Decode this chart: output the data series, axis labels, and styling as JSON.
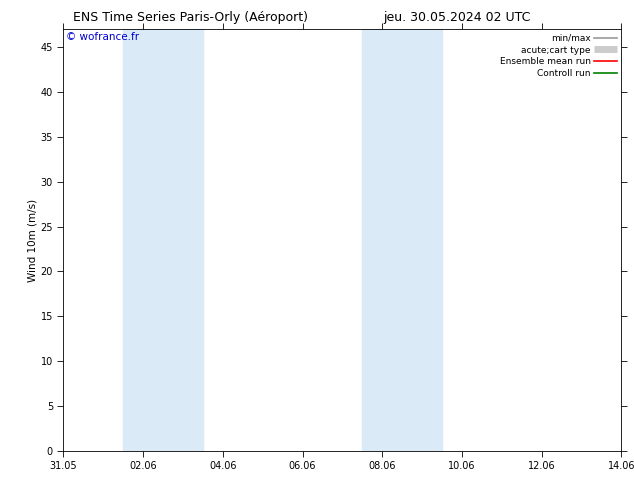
{
  "title_left": "ENS Time Series Paris-Orly (Aéroport)",
  "title_right": "jeu. 30.05.2024 02 UTC",
  "ylabel": "Wind 10m (m/s)",
  "watermark": "© wofrance.fr",
  "watermark_color": "#0000cc",
  "ylim": [
    0,
    47
  ],
  "yticks": [
    0,
    5,
    10,
    15,
    20,
    25,
    30,
    35,
    40,
    45
  ],
  "xtick_labels": [
    "31.05",
    "02.06",
    "04.06",
    "06.06",
    "08.06",
    "10.06",
    "12.06",
    "14.06"
  ],
  "xtick_positions": [
    0,
    2,
    4,
    6,
    8,
    10,
    12,
    14
  ],
  "x_start_days": 0,
  "x_end_days": 14,
  "background_color": "#ffffff",
  "plot_bg_color": "#ffffff",
  "shade_bands": [
    {
      "x_start": 1.5,
      "x_end": 3.5,
      "color": "#daeaf7"
    },
    {
      "x_start": 7.5,
      "x_end": 9.5,
      "color": "#daeaf7"
    }
  ],
  "legend_items": [
    {
      "label": "min/max",
      "color": "#999999",
      "lw": 1.2,
      "style": "line"
    },
    {
      "label": "acute;cart type",
      "color": "#cccccc",
      "lw": 5,
      "style": "bar"
    },
    {
      "label": "Ensemble mean run",
      "color": "#ff0000",
      "lw": 1.2,
      "style": "line"
    },
    {
      "label": "Controll run",
      "color": "#008000",
      "lw": 1.2,
      "style": "line"
    }
  ],
  "title_fontsize": 9,
  "tick_fontsize": 7,
  "legend_fontsize": 6.5,
  "watermark_fontsize": 7.5,
  "ylabel_fontsize": 7.5
}
